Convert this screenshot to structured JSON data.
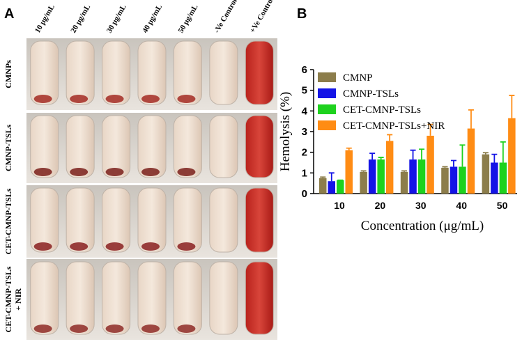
{
  "panel_a": {
    "label": "A",
    "columns": [
      "10 μg/mL",
      "20 μg/mL",
      "30 μg/mL",
      "40 μg/mL",
      "50 μg/mL",
      "-Ve Control",
      "+Ve Control"
    ],
    "rows": [
      [
        "CMNPs"
      ],
      [
        "CMNP-TSLs"
      ],
      [
        "CET-CMNP-TSLs"
      ],
      [
        "CET-CMNP-TSLs",
        "+ NIR"
      ]
    ]
  },
  "chart_data": {
    "type": "bar",
    "panel_label": "B",
    "x_label": "Concentration (μg/mL)",
    "y_label": "Hemolysis (%)",
    "categories": [
      "10",
      "20",
      "30",
      "40",
      "50"
    ],
    "series": [
      {
        "name": "CMNP",
        "color": "#8c7d4b",
        "values": [
          0.75,
          1.05,
          1.05,
          1.25,
          1.9
        ],
        "errors": [
          0.05,
          0.05,
          0.05,
          0.05,
          0.08
        ]
      },
      {
        "name": "CMNP-TSLs",
        "color": "#1414e6",
        "values": [
          0.6,
          1.65,
          1.65,
          1.3,
          1.5
        ],
        "errors": [
          0.4,
          0.3,
          0.45,
          0.3,
          0.4
        ]
      },
      {
        "name": "CET-CMNP-TSLs",
        "color": "#1ed21e",
        "values": [
          0.65,
          1.65,
          1.65,
          1.3,
          1.5
        ],
        "errors": [
          0,
          0.1,
          0.5,
          1.05,
          1.0
        ]
      },
      {
        "name": "CET-CMNP-TSLs+NIR",
        "color": "#ff8c14",
        "values": [
          2.1,
          2.55,
          2.8,
          3.15,
          3.65
        ],
        "errors": [
          0.1,
          0.3,
          0.55,
          0.9,
          1.1
        ]
      }
    ],
    "ylim": [
      0,
      6
    ],
    "yticks": [
      0,
      1,
      2,
      3,
      4,
      5,
      6
    ],
    "legend": "top-left"
  }
}
